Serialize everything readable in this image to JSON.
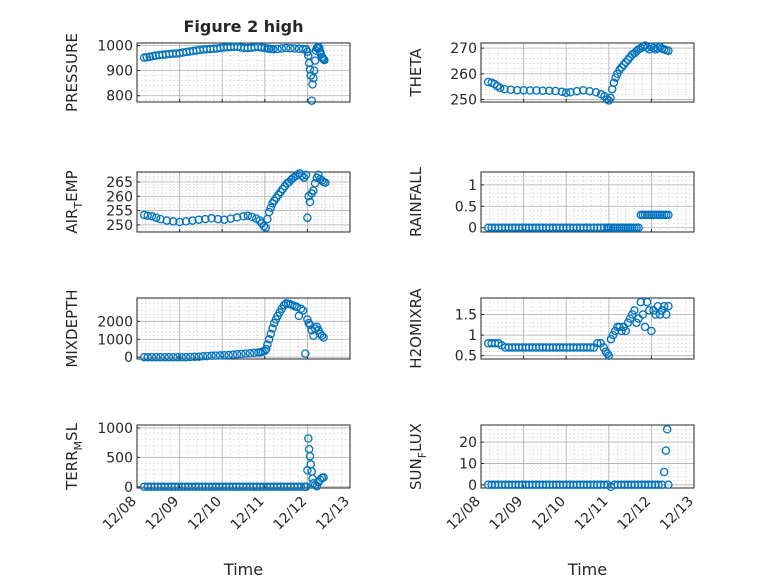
{
  "figure": {
    "title": "Figure 2 high",
    "marker_color": "#0072BD",
    "xlabel": "Time",
    "x_tick_labels": [
      "12/08",
      "12/09",
      "12/10",
      "12/11",
      "12/12",
      "12/13"
    ]
  },
  "chart_data": [
    {
      "id": "pressure",
      "type": "scatter",
      "title": "Figure 2 high",
      "ylabel": "PRESSURE",
      "xlabel": "",
      "xlim": [
        0,
        5
      ],
      "ylim": [
        775,
        1010
      ],
      "yticks": [
        800,
        900,
        1000
      ],
      "yticklabels": [
        "800",
        "900",
        "1000"
      ],
      "grid": true,
      "x": [
        0.17,
        0.23,
        0.3,
        0.37,
        0.44,
        0.52,
        0.6,
        0.68,
        0.76,
        0.84,
        0.92,
        1.0,
        1.08,
        1.16,
        1.24,
        1.32,
        1.4,
        1.48,
        1.56,
        1.64,
        1.72,
        1.8,
        1.88,
        1.96,
        2.04,
        2.12,
        2.2,
        2.28,
        2.36,
        2.44,
        2.52,
        2.6,
        2.68,
        2.76,
        2.84,
        2.92,
        3.0,
        3.06,
        3.1,
        3.15,
        3.2,
        3.3,
        3.4,
        3.5,
        3.6,
        3.7,
        3.8,
        3.9,
        3.97,
        4.0,
        4.02,
        4.04,
        4.06,
        4.08,
        4.1,
        4.12,
        4.14,
        4.16,
        4.18,
        4.2,
        4.22,
        4.24,
        4.26,
        4.28,
        4.3,
        4.32,
        4.34,
        4.36,
        4.38,
        4.4
      ],
      "y": [
        952,
        953,
        955,
        958,
        960,
        962,
        963,
        964,
        966,
        967,
        968,
        969,
        972,
        974,
        976,
        978,
        980,
        982,
        984,
        985,
        986,
        987,
        988,
        990,
        992,
        993,
        994,
        995,
        995,
        992,
        990,
        990,
        991,
        993,
        994,
        992,
        990,
        988,
        987,
        986,
        985,
        986,
        988,
        990,
        989,
        988,
        987,
        986,
        985,
        975,
        960,
        930,
        905,
        880,
        780,
        845,
        870,
        900,
        940,
        980,
        990,
        993,
        995,
        990,
        975,
        965,
        955,
        950,
        945,
        942
      ]
    },
    {
      "id": "theta",
      "type": "scatter",
      "ylabel": "THETA",
      "xlabel": "",
      "xlim": [
        0,
        5
      ],
      "ylim": [
        249,
        272
      ],
      "yticks": [
        250,
        260,
        270
      ],
      "yticklabels": [
        "250",
        "260",
        "270"
      ],
      "grid": true,
      "x": [
        0.17,
        0.25,
        0.32,
        0.38,
        0.45,
        0.55,
        0.7,
        0.85,
        1.0,
        1.15,
        1.3,
        1.45,
        1.6,
        1.75,
        1.9,
        2.0,
        2.1,
        2.25,
        2.4,
        2.55,
        2.7,
        2.82,
        2.9,
        2.96,
        3.0,
        3.04,
        3.08,
        3.12,
        3.16,
        3.2,
        3.25,
        3.3,
        3.35,
        3.4,
        3.45,
        3.5,
        3.55,
        3.6,
        3.65,
        3.7,
        3.75,
        3.8,
        3.85,
        3.9,
        3.95,
        4.0,
        4.05,
        4.1,
        4.15,
        4.2,
        4.25,
        4.3,
        4.35,
        4.4
      ],
      "y": [
        256.8,
        256.5,
        256.0,
        255.2,
        254.5,
        254.0,
        253.8,
        253.6,
        253.6,
        253.5,
        253.5,
        253.4,
        253.4,
        253.3,
        253.0,
        252.6,
        252.8,
        253.2,
        253.6,
        253.2,
        252.8,
        252.0,
        251.2,
        250.0,
        249.6,
        250.6,
        254.0,
        256.5,
        258.5,
        260.0,
        261.5,
        262.5,
        263.5,
        264.5,
        265.5,
        266.5,
        267.5,
        268.0,
        268.8,
        269.5,
        270.0,
        270.6,
        271.0,
        270.2,
        269.5,
        270.5,
        270.0,
        269.5,
        270.0,
        270.5,
        269.8,
        269.5,
        269.2,
        269.0
      ]
    },
    {
      "id": "air-temp",
      "type": "scatter",
      "ylabel": "AIR_TEMP",
      "ylabel_parts": {
        "main": "AIR",
        "sub": "T",
        "tail": "EMP"
      },
      "xlabel": "",
      "xlim": [
        0,
        5
      ],
      "ylim": [
        247.5,
        268.5
      ],
      "yticks": [
        250,
        255,
        260,
        265
      ],
      "yticklabels": [
        "250",
        "255",
        "260",
        "265"
      ],
      "grid": true,
      "x": [
        0.17,
        0.25,
        0.35,
        0.45,
        0.55,
        0.7,
        0.85,
        1.0,
        1.15,
        1.3,
        1.45,
        1.6,
        1.75,
        1.9,
        2.05,
        2.2,
        2.35,
        2.5,
        2.6,
        2.7,
        2.8,
        2.88,
        2.93,
        2.98,
        3.02,
        3.06,
        3.1,
        3.14,
        3.18,
        3.22,
        3.27,
        3.32,
        3.37,
        3.42,
        3.47,
        3.52,
        3.57,
        3.62,
        3.67,
        3.72,
        3.77,
        3.82,
        3.87,
        3.92,
        3.97,
        4.0,
        4.03,
        4.06,
        4.1,
        4.14,
        4.18,
        4.22,
        4.26,
        4.3,
        4.34,
        4.38,
        4.42
      ],
      "y": [
        253.5,
        253.2,
        253.0,
        252.5,
        252.0,
        251.5,
        251.2,
        251.0,
        251.2,
        251.5,
        251.8,
        252.0,
        252.3,
        252.0,
        251.8,
        252.2,
        252.6,
        253.0,
        253.2,
        252.8,
        252.2,
        251.5,
        250.5,
        249.5,
        249.0,
        252.0,
        254.5,
        256.0,
        257.5,
        258.5,
        259.5,
        260.5,
        261.5,
        262.5,
        263.5,
        264.5,
        265.0,
        265.8,
        266.5,
        267.0,
        267.5,
        268.0,
        267.2,
        266.5,
        267.5,
        252.5,
        260.0,
        258.0,
        261.0,
        262.0,
        264.5,
        266.5,
        267.5,
        266.0,
        265.5,
        265.0,
        264.8
      ]
    },
    {
      "id": "rainfall",
      "type": "scatter",
      "ylabel": "RAINFALL",
      "xlabel": "",
      "xlim": [
        0,
        5
      ],
      "ylim": [
        -0.1,
        1.3
      ],
      "yticks": [
        0,
        0.5,
        1
      ],
      "yticklabels": [
        "0",
        "0.5",
        "1"
      ],
      "grid": true,
      "x": [
        0.17,
        0.25,
        0.33,
        0.41,
        0.49,
        0.57,
        0.65,
        0.73,
        0.81,
        0.89,
        0.97,
        1.05,
        1.13,
        1.21,
        1.29,
        1.37,
        1.45,
        1.53,
        1.61,
        1.69,
        1.77,
        1.85,
        1.93,
        2.01,
        2.09,
        2.17,
        2.25,
        2.33,
        2.41,
        2.49,
        2.57,
        2.65,
        2.73,
        2.81,
        2.89,
        2.97,
        3.0,
        3.05,
        3.1,
        3.15,
        3.2,
        3.25,
        3.3,
        3.35,
        3.4,
        3.45,
        3.5,
        3.55,
        3.6,
        3.65,
        3.7,
        3.75,
        3.8,
        3.85,
        3.9,
        3.95,
        4.0,
        4.05,
        4.1,
        4.15,
        4.2,
        4.25,
        4.3,
        4.35,
        4.4
      ],
      "y": [
        0,
        0,
        0,
        0,
        0,
        0,
        0,
        0,
        0,
        0,
        0,
        0,
        0,
        0,
        0,
        0,
        0,
        0,
        0,
        0,
        0,
        0,
        0,
        0,
        0,
        0,
        0,
        0,
        0,
        0,
        0,
        0,
        0,
        0,
        0,
        0,
        0,
        0,
        0,
        0,
        0,
        0,
        0,
        0,
        0,
        0,
        0,
        0,
        0,
        0,
        0,
        0.3,
        0.3,
        0.3,
        0.3,
        0.3,
        0.3,
        0.3,
        0.3,
        0.3,
        0.3,
        0.3,
        0.3,
        0.3,
        0.3
      ]
    },
    {
      "id": "mixdepth",
      "type": "scatter",
      "ylabel": "MIXDEPTH",
      "xlabel": "",
      "xlim": [
        0,
        5
      ],
      "ylim": [
        -100,
        3300
      ],
      "yticks": [
        0,
        1000,
        2000
      ],
      "yticklabels": [
        "0",
        "1000",
        "2000"
      ],
      "grid": true,
      "x": [
        0.17,
        0.25,
        0.35,
        0.45,
        0.55,
        0.65,
        0.75,
        0.85,
        0.95,
        1.05,
        1.15,
        1.25,
        1.35,
        1.45,
        1.55,
        1.65,
        1.75,
        1.85,
        1.95,
        2.05,
        2.15,
        2.25,
        2.35,
        2.45,
        2.55,
        2.65,
        2.75,
        2.85,
        2.9,
        2.95,
        3.0,
        3.03,
        3.06,
        3.1,
        3.14,
        3.18,
        3.22,
        3.26,
        3.3,
        3.35,
        3.4,
        3.45,
        3.5,
        3.55,
        3.6,
        3.65,
        3.7,
        3.75,
        3.8,
        3.85,
        3.9,
        3.95,
        4.0,
        4.03,
        4.06,
        4.1,
        4.14,
        4.18,
        4.22,
        4.26,
        4.3,
        4.34,
        4.38
      ],
      "y": [
        0,
        0,
        0,
        0,
        0,
        0,
        0,
        0,
        0,
        0,
        0,
        10,
        20,
        30,
        50,
        60,
        80,
        90,
        100,
        110,
        120,
        140,
        160,
        180,
        200,
        220,
        240,
        260,
        280,
        300,
        350,
        450,
        700,
        1000,
        1300,
        1600,
        1900,
        2100,
        2300,
        2500,
        2700,
        2900,
        3000,
        2980,
        2950,
        2900,
        2850,
        2800,
        2300,
        2700,
        2600,
        200,
        2100,
        1900,
        1800,
        1500,
        1200,
        1600,
        1700,
        1500,
        1300,
        1200,
        1100
      ]
    },
    {
      "id": "h2omixra",
      "type": "scatter",
      "ylabel": "H2OMIXRA",
      "xlabel": "",
      "xlim": [
        0,
        5
      ],
      "ylim": [
        0.42,
        1.9
      ],
      "yticks": [
        0.5,
        1,
        1.5
      ],
      "yticklabels": [
        "0.5",
        "1",
        "1.5"
      ],
      "grid": true,
      "x": [
        0.17,
        0.25,
        0.33,
        0.41,
        0.49,
        0.57,
        0.65,
        0.73,
        0.81,
        0.89,
        0.97,
        1.05,
        1.13,
        1.21,
        1.29,
        1.37,
        1.45,
        1.53,
        1.61,
        1.69,
        1.77,
        1.85,
        1.93,
        2.01,
        2.09,
        2.17,
        2.25,
        2.33,
        2.41,
        2.49,
        2.57,
        2.65,
        2.73,
        2.81,
        2.88,
        2.93,
        2.97,
        3.0,
        3.05,
        3.1,
        3.15,
        3.2,
        3.25,
        3.3,
        3.35,
        3.4,
        3.45,
        3.5,
        3.55,
        3.6,
        3.65,
        3.7,
        3.75,
        3.8,
        3.85,
        3.9,
        3.95,
        4.0,
        4.05,
        4.1,
        4.15,
        4.2,
        4.25,
        4.3,
        4.35,
        4.4
      ],
      "y": [
        0.8,
        0.8,
        0.8,
        0.8,
        0.75,
        0.7,
        0.7,
        0.7,
        0.7,
        0.7,
        0.7,
        0.7,
        0.7,
        0.7,
        0.7,
        0.7,
        0.7,
        0.7,
        0.7,
        0.7,
        0.7,
        0.7,
        0.7,
        0.7,
        0.7,
        0.7,
        0.7,
        0.7,
        0.7,
        0.7,
        0.7,
        0.7,
        0.8,
        0.8,
        0.7,
        0.6,
        0.55,
        0.5,
        0.9,
        1.0,
        1.1,
        1.2,
        1.2,
        1.1,
        1.2,
        1.1,
        1.3,
        1.4,
        1.5,
        1.6,
        1.3,
        1.4,
        1.8,
        1.5,
        1.2,
        1.8,
        1.6,
        1.1,
        1.6,
        1.5,
        1.7,
        1.5,
        1.6,
        1.7,
        1.5,
        1.7
      ]
    },
    {
      "id": "terr-msl",
      "type": "scatter",
      "ylabel": "TERR_MSL",
      "ylabel_parts": {
        "main": "TERR",
        "sub": "M",
        "tail": "SL"
      },
      "xlabel": "Time",
      "xlim": [
        0,
        5
      ],
      "ylim": [
        -20,
        1050
      ],
      "yticks": [
        0,
        500,
        1000
      ],
      "yticklabels": [
        "0",
        "500",
        "1000"
      ],
      "xticks": [
        0,
        1,
        2,
        3,
        4,
        5
      ],
      "xticklabels": [
        "12/08",
        "12/09",
        "12/10",
        "12/11",
        "12/12",
        "12/13"
      ],
      "grid": true,
      "x": [
        0.17,
        0.25,
        0.33,
        0.41,
        0.49,
        0.57,
        0.65,
        0.73,
        0.81,
        0.89,
        0.97,
        1.05,
        1.13,
        1.21,
        1.29,
        1.37,
        1.45,
        1.53,
        1.61,
        1.69,
        1.77,
        1.85,
        1.93,
        2.01,
        2.09,
        2.17,
        2.25,
        2.33,
        2.41,
        2.49,
        2.57,
        2.65,
        2.73,
        2.81,
        2.89,
        2.97,
        3.05,
        3.13,
        3.21,
        3.29,
        3.37,
        3.45,
        3.53,
        3.61,
        3.69,
        3.77,
        3.85,
        3.93,
        3.97,
        4.0,
        4.02,
        4.04,
        4.06,
        4.08,
        4.1,
        4.12,
        4.14,
        4.18,
        4.22,
        4.26,
        4.3,
        4.34,
        4.38
      ],
      "y": [
        0,
        0,
        0,
        0,
        0,
        0,
        0,
        0,
        0,
        0,
        0,
        0,
        0,
        0,
        0,
        0,
        0,
        0,
        0,
        0,
        0,
        0,
        0,
        0,
        0,
        0,
        0,
        0,
        0,
        0,
        0,
        0,
        0,
        0,
        0,
        0,
        0,
        0,
        0,
        0,
        0,
        0,
        0,
        0,
        0,
        0,
        0,
        0,
        0,
        280,
        820,
        640,
        520,
        380,
        260,
        140,
        60,
        30,
        10,
        80,
        120,
        150,
        160
      ]
    },
    {
      "id": "sun-flux",
      "type": "scatter",
      "ylabel": "SUN_FLUX",
      "ylabel_parts": {
        "main": "SUN",
        "sub": "F",
        "tail": "LUX"
      },
      "xlabel": "Time",
      "xlim": [
        0,
        5
      ],
      "ylim": [
        -1.5,
        28
      ],
      "yticks": [
        0,
        10,
        20
      ],
      "yticklabels": [
        "0",
        "10",
        "20"
      ],
      "xticks": [
        0,
        1,
        2,
        3,
        4,
        5
      ],
      "xticklabels": [
        "12/08",
        "12/09",
        "12/10",
        "12/11",
        "12/12",
        "12/13"
      ],
      "grid": true,
      "x": [
        0.17,
        0.25,
        0.33,
        0.41,
        0.49,
        0.57,
        0.65,
        0.73,
        0.81,
        0.89,
        0.97,
        1.05,
        1.13,
        1.21,
        1.29,
        1.37,
        1.45,
        1.53,
        1.61,
        1.69,
        1.77,
        1.85,
        1.93,
        2.01,
        2.09,
        2.17,
        2.25,
        2.33,
        2.41,
        2.49,
        2.57,
        2.65,
        2.73,
        2.81,
        2.89,
        2.97,
        3.05,
        3.13,
        3.21,
        3.29,
        3.37,
        3.45,
        3.53,
        3.61,
        3.69,
        3.77,
        3.85,
        3.93,
        4.01,
        4.09,
        4.17,
        4.25,
        4.3,
        4.34,
        4.37,
        4.4
      ],
      "y": [
        0,
        0,
        0,
        0,
        0,
        0,
        0,
        0,
        0,
        0,
        0,
        0,
        0,
        0,
        0,
        0,
        0,
        0,
        0,
        0,
        0,
        0,
        0,
        0,
        0,
        0,
        0,
        0,
        0,
        0,
        0,
        0,
        0,
        0,
        0,
        0,
        -1,
        0,
        0,
        0,
        0,
        0,
        0,
        0,
        0,
        0,
        0,
        0,
        0,
        0,
        0,
        0,
        6,
        16,
        26,
        0
      ]
    }
  ]
}
